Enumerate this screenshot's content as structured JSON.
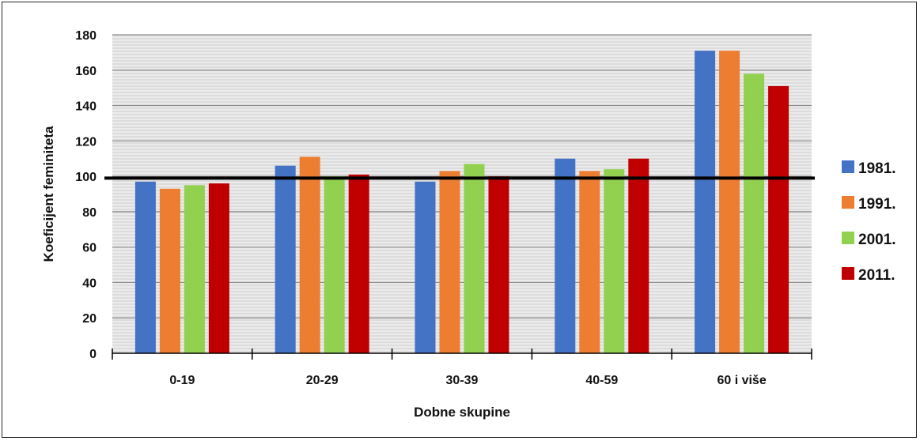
{
  "chart_data": {
    "type": "bar",
    "categories": [
      "0-19",
      "20-29",
      "30-39",
      "40-59",
      "60 i više"
    ],
    "series": [
      {
        "name": "1981.",
        "color": "#4472c4",
        "values": [
          97,
          106,
          97,
          110,
          171
        ]
      },
      {
        "name": "1991.",
        "color": "#ed7d31",
        "values": [
          93,
          111,
          103,
          103,
          171
        ]
      },
      {
        "name": "2001.",
        "color": "#92d050",
        "values": [
          95,
          100,
          107,
          104,
          158
        ]
      },
      {
        "name": "2011.",
        "color": "#c00000",
        "values": [
          96,
          101,
          100,
          110,
          151
        ]
      }
    ],
    "xlabel": "Dobne skupine",
    "ylabel": "Koeficijent feminiteta",
    "ylim": [
      0,
      180
    ],
    "yticks": [
      "0",
      "20",
      "40",
      "60",
      "80",
      "100",
      "120",
      "140",
      "160",
      "180"
    ],
    "reference_line": 99,
    "grid": true,
    "legend_position": "right"
  }
}
